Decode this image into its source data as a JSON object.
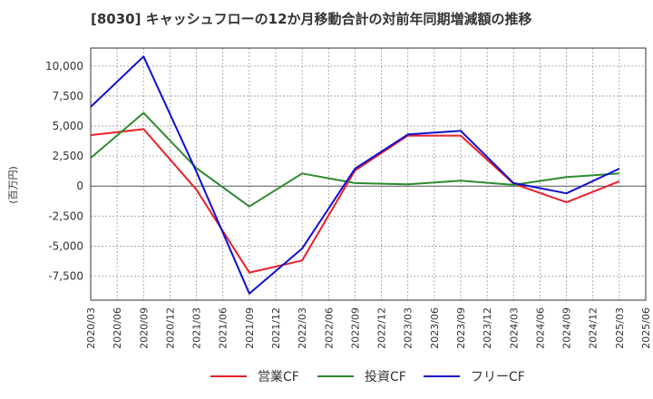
{
  "chart_data": {
    "type": "line",
    "title": "[8030]  キャッシュフローの12か月移動合計の対前年同期増減額の推移",
    "ylabel": "(百万円)",
    "xlabel": "",
    "ylim": [
      -9500,
      11500
    ],
    "yticks": [
      10000,
      7500,
      5000,
      2500,
      0,
      -2500,
      -5000,
      -7500
    ],
    "ytick_labels": [
      "10,000",
      "7,500",
      "5,000",
      "2,500",
      "0",
      "-2,500",
      "-5,000",
      "-7,500"
    ],
    "categories": [
      "2020/03",
      "2020/06",
      "2020/09",
      "2020/12",
      "2021/03",
      "2021/06",
      "2021/09",
      "2021/12",
      "2022/03",
      "2022/06",
      "2022/09",
      "2022/12",
      "2023/03",
      "2023/06",
      "2023/09",
      "2023/12",
      "2024/03",
      "2024/06",
      "2024/09",
      "2024/12",
      "2025/03",
      "2025/06"
    ],
    "series": [
      {
        "name": "営業CF",
        "color": "#e8202a",
        "points": [
          [
            "2020/03",
            4250
          ],
          [
            "2020/09",
            4750
          ],
          [
            "2021/03",
            -300
          ],
          [
            "2021/09",
            -7200
          ],
          [
            "2022/03",
            -6200
          ],
          [
            "2022/09",
            1300
          ],
          [
            "2023/03",
            4200
          ],
          [
            "2023/09",
            4200
          ],
          [
            "2024/03",
            200
          ],
          [
            "2024/09",
            -1350
          ],
          [
            "2025/03",
            400
          ]
        ]
      },
      {
        "name": "投資CF",
        "color": "#2e8b2e",
        "points": [
          [
            "2020/03",
            2350
          ],
          [
            "2020/09",
            6100
          ],
          [
            "2021/03",
            1500
          ],
          [
            "2021/09",
            -1700
          ],
          [
            "2022/03",
            1050
          ],
          [
            "2022/09",
            250
          ],
          [
            "2023/03",
            150
          ],
          [
            "2023/09",
            450
          ],
          [
            "2024/03",
            100
          ],
          [
            "2024/09",
            750
          ],
          [
            "2025/03",
            1050
          ]
        ]
      },
      {
        "name": "フリーCF",
        "color": "#1010d0",
        "points": [
          [
            "2020/03",
            6600
          ],
          [
            "2020/09",
            10800
          ],
          [
            "2021/03",
            1200
          ],
          [
            "2021/09",
            -8950
          ],
          [
            "2022/03",
            -5200
          ],
          [
            "2022/09",
            1450
          ],
          [
            "2023/03",
            4300
          ],
          [
            "2023/09",
            4600
          ],
          [
            "2024/03",
            250
          ],
          [
            "2024/09",
            -600
          ],
          [
            "2025/03",
            1450
          ]
        ]
      }
    ]
  }
}
